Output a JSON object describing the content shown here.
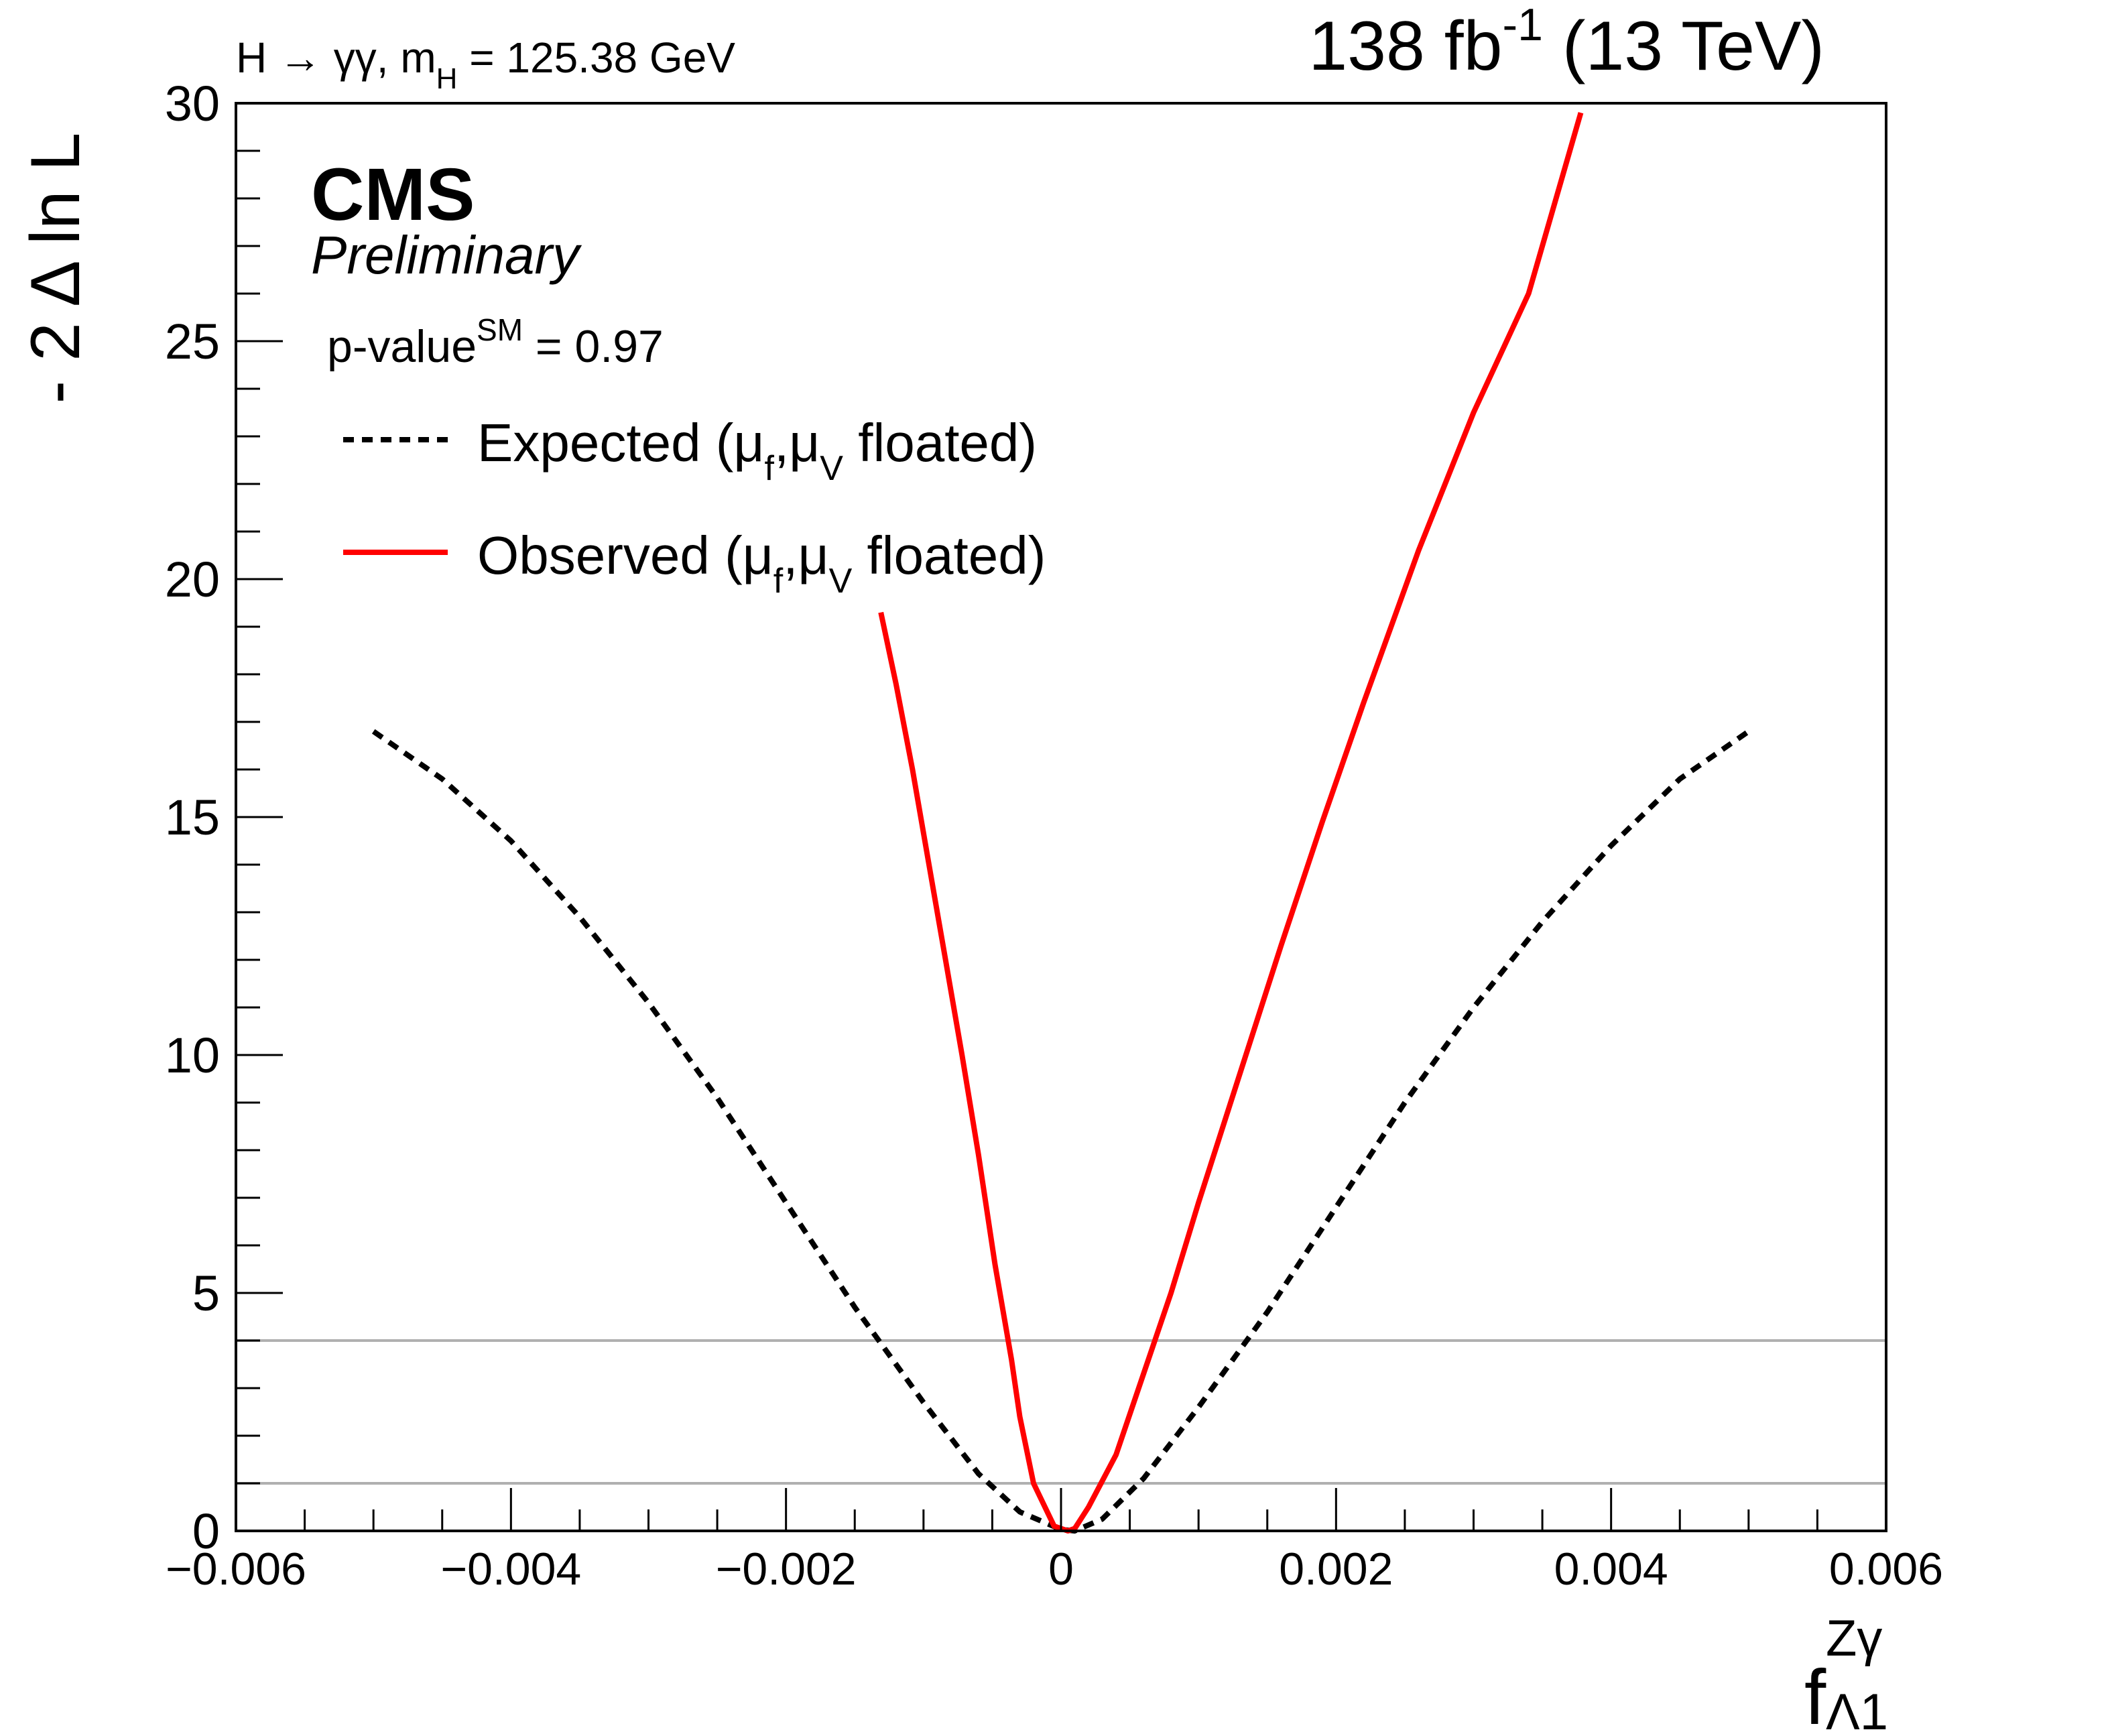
{
  "header": {
    "channel_main": "H → γγ, m",
    "channel_sub": "H",
    "channel_tail": " = 125.38 GeV",
    "lumi_main": "138 fb",
    "lumi_sup": "-1",
    "lumi_tail": " (13 TeV)"
  },
  "labels": {
    "cms": "CMS",
    "preliminary": "Preliminary",
    "pvalue_main": "p-value",
    "pvalue_sup": "SM",
    "pvalue_tail": " = 0.97"
  },
  "legend": {
    "expected": {
      "t1": "Expected (μ",
      "s1": "f",
      "t2": ",μ",
      "s2": "V",
      "t3": " floated)"
    },
    "observed": {
      "t1": "Observed (μ",
      "s1": "f",
      "t2": ",μ",
      "s2": "V",
      "t3": " floated)"
    }
  },
  "axes": {
    "ylabel": "- 2 Δ ln L",
    "xlabel_base": "f",
    "xlabel_sup": "Zγ",
    "xlabel_sub": "Λ1"
  },
  "colors": {
    "observed": "#ff0000",
    "expected": "#000000",
    "reference_lines": "#b0b0b0"
  },
  "chart_data": {
    "type": "line",
    "xlim": [
      -0.006,
      0.006
    ],
    "ylim": [
      0,
      30
    ],
    "x_ticks": [
      {
        "value": -0.006,
        "label": "−0.006"
      },
      {
        "value": -0.004,
        "label": "−0.004"
      },
      {
        "value": -0.002,
        "label": "−0.002"
      },
      {
        "value": 0,
        "label": "0"
      },
      {
        "value": 0.002,
        "label": "0.002"
      },
      {
        "value": 0.004,
        "label": "0.004"
      },
      {
        "value": 0.006,
        "label": "0.006"
      }
    ],
    "y_ticks": [
      {
        "value": 0,
        "label": "0"
      },
      {
        "value": 5,
        "label": "5"
      },
      {
        "value": 10,
        "label": "10"
      },
      {
        "value": 15,
        "label": "15"
      },
      {
        "value": 20,
        "label": "20"
      },
      {
        "value": 25,
        "label": "25"
      },
      {
        "value": 30,
        "label": "30"
      }
    ],
    "reference_lines": [
      1,
      4
    ],
    "series": [
      {
        "name": "Expected (μf,μV floated)",
        "style": "dashed",
        "points": [
          [
            -0.005,
            16.8
          ],
          [
            -0.0045,
            15.8
          ],
          [
            -0.004,
            14.5
          ],
          [
            -0.0035,
            12.9
          ],
          [
            -0.003,
            11.1
          ],
          [
            -0.0025,
            9.1
          ],
          [
            -0.002,
            6.9
          ],
          [
            -0.0015,
            4.7
          ],
          [
            -0.001,
            2.7
          ],
          [
            -0.0006,
            1.2
          ],
          [
            -0.0003,
            0.4
          ],
          [
            0.0,
            0.03
          ],
          [
            0.0001,
            0.0
          ],
          [
            0.0003,
            0.25
          ],
          [
            0.0006,
            1.1
          ],
          [
            0.001,
            2.6
          ],
          [
            0.0015,
            4.6
          ],
          [
            0.002,
            6.8
          ],
          [
            0.0025,
            9.0
          ],
          [
            0.003,
            11.0
          ],
          [
            0.0035,
            12.8
          ],
          [
            0.004,
            14.4
          ],
          [
            0.0045,
            15.8
          ],
          [
            0.005,
            16.8
          ]
        ]
      },
      {
        "name": "Observed (μf,μV floated)",
        "style": "solid",
        "points": [
          [
            -0.00131,
            19.3
          ],
          [
            -0.0012,
            17.8
          ],
          [
            -0.00108,
            16.0
          ],
          [
            -0.00096,
            14.0
          ],
          [
            -0.00084,
            12.0
          ],
          [
            -0.00072,
            10.0
          ],
          [
            -0.0006,
            7.9
          ],
          [
            -0.00048,
            5.6
          ],
          [
            -0.00036,
            3.6
          ],
          [
            -0.0003,
            2.4
          ],
          [
            -0.0002,
            1.0
          ],
          [
            -5e-05,
            0.1
          ],
          [
            5e-05,
            0.0
          ],
          [
            0.0001,
            0.05
          ],
          [
            0.0002,
            0.5
          ],
          [
            0.0004,
            1.6
          ],
          [
            0.0006,
            3.3
          ],
          [
            0.0008,
            5.0
          ],
          [
            0.001,
            6.9
          ],
          [
            0.0013,
            9.6
          ],
          [
            0.0016,
            12.3
          ],
          [
            0.0019,
            14.9
          ],
          [
            0.0022,
            17.4
          ],
          [
            0.0026,
            20.6
          ],
          [
            0.003,
            23.5
          ],
          [
            0.0034,
            26.0
          ],
          [
            0.0037,
            29.0
          ],
          [
            0.00378,
            29.8
          ]
        ]
      }
    ]
  }
}
